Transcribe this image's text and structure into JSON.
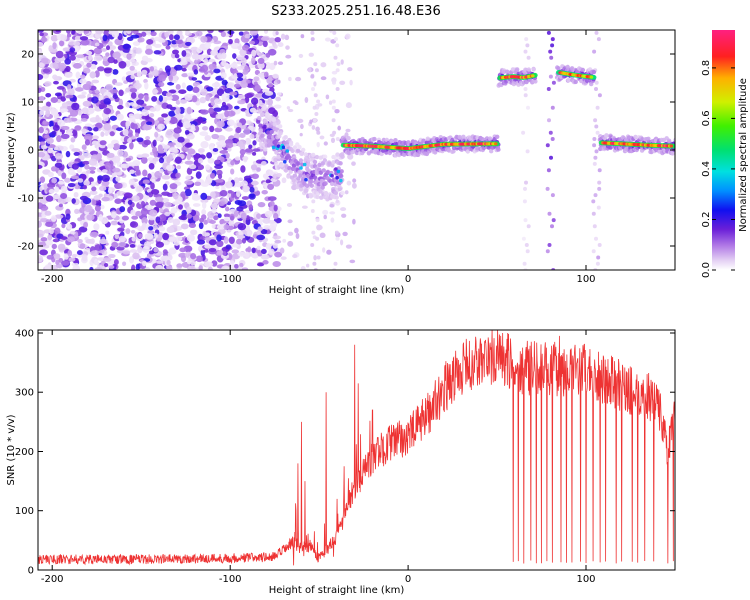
{
  "title": "S233.2025.251.16.48.E36",
  "chart_data": [
    {
      "type": "heatmap",
      "xlabel": "Height of straight line (km)",
      "ylabel": "Frequency (Hz)",
      "xlim": [
        -208,
        150
      ],
      "ylim": [
        -25,
        25
      ],
      "xticks": [
        -200,
        -100,
        0,
        100
      ],
      "yticks": [
        -20,
        -10,
        0,
        10,
        20
      ],
      "colorbar": {
        "label": "Normalized spectral amplitude",
        "range": [
          0,
          0.95
        ],
        "ticks": [
          0.0,
          0.2,
          0.4,
          0.6,
          0.8
        ],
        "tick_labels": [
          "0.0",
          "0.2",
          "0.4",
          "0.6",
          "0.8"
        ]
      },
      "ridges": [
        {
          "name": "low-altitude noisy band",
          "x": [
            -84,
            -66,
            -57,
            -44,
            -37
          ],
          "freq": [
            6,
            -2,
            -5,
            -6,
            -5
          ],
          "peak": 0.4
        },
        {
          "name": "main tone",
          "x": [
            -37,
            -20,
            0,
            20,
            51
          ],
          "freq": [
            1,
            0.8,
            0.3,
            1.2,
            1.3
          ],
          "peak": 0.9
        },
        {
          "name": "upper tone segment 1",
          "x": [
            51,
            59,
            65,
            72
          ],
          "freq": [
            15,
            15.3,
            15.1,
            15.6
          ],
          "peak": 0.9
        },
        {
          "name": "upper tone segment 2",
          "x": [
            84,
            94,
            105
          ],
          "freq": [
            16.2,
            15.6,
            15.1
          ],
          "peak": 0.85
        },
        {
          "name": "right tone",
          "x": [
            108,
            120,
            135,
            150
          ],
          "freq": [
            1.5,
            1.3,
            1.0,
            0.8
          ],
          "peak": 0.9
        }
      ]
    },
    {
      "type": "line",
      "xlabel": "Height of straight line (km)",
      "ylabel": "SNR (10 * v/v)",
      "xlim": [
        -208,
        150
      ],
      "ylim": [
        0,
        405
      ],
      "xticks": [
        -200,
        -100,
        0,
        100
      ],
      "yticks": [
        0,
        100,
        200,
        300,
        400
      ],
      "color": "#ee3333",
      "baseline_points": {
        "x": [
          -208,
          -150,
          -100,
          -75,
          -65,
          -55,
          -50,
          -40,
          -30,
          -20,
          -10,
          0,
          10,
          20,
          30,
          40,
          50,
          60,
          70,
          80,
          90,
          100,
          110,
          120,
          130,
          140,
          146,
          150
        ],
        "snr": [
          18,
          18,
          20,
          22,
          45,
          40,
          20,
          55,
          140,
          190,
          215,
          225,
          260,
          305,
          340,
          352,
          360,
          345,
          340,
          338,
          340,
          335,
          325,
          310,
          295,
          290,
          200,
          260
        ]
      },
      "spikes": [
        {
          "x": -62,
          "snr": 180
        },
        {
          "x": -60,
          "snr": 250
        },
        {
          "x": -58,
          "snr": 150
        },
        {
          "x": -46,
          "snr": 300
        },
        {
          "x": -40,
          "snr": 120
        },
        {
          "x": -36,
          "snr": 175
        },
        {
          "x": -30,
          "snr": 380
        },
        {
          "x": -28,
          "snr": 315
        },
        {
          "x": -20,
          "snr": 270
        },
        {
          "x": 52,
          "snr": 395
        },
        {
          "x": 56,
          "snr": 400
        },
        {
          "x": 85,
          "snr": 395
        }
      ],
      "dropouts_x": [
        59,
        62,
        65,
        69,
        72,
        75,
        78,
        81,
        86,
        89,
        92,
        97,
        100,
        104,
        108,
        111,
        117,
        120,
        126,
        129,
        133,
        138,
        146,
        149
      ]
    }
  ]
}
